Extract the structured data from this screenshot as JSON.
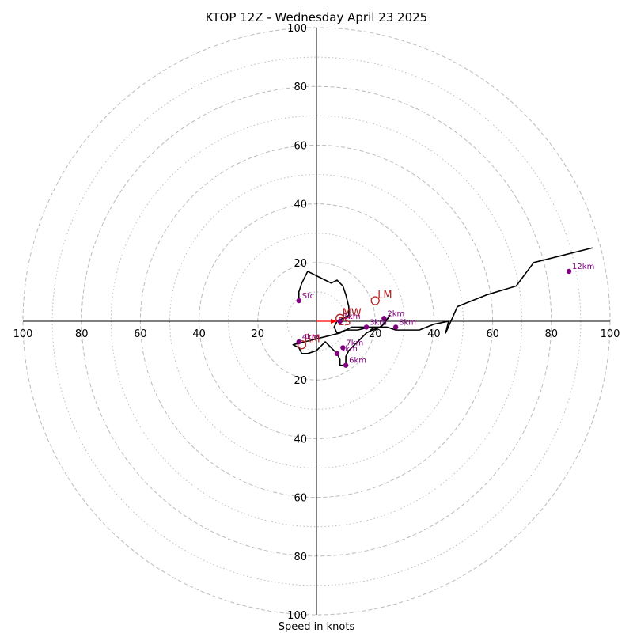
{
  "chart_data": {
    "type": "hodograph",
    "title": "KTOP 12Z - Wednesday April 23 2025",
    "xlabel": "Speed in knots",
    "range": 100,
    "ring_major": [
      20,
      40,
      60,
      80,
      100
    ],
    "ring_minor": [
      10,
      30,
      50,
      70,
      90
    ],
    "x_tick_labels": [
      "100",
      "80",
      "60",
      "40",
      "20",
      "20",
      "40",
      "60",
      "80",
      "100"
    ],
    "y_tick_labels": [
      "100",
      "80",
      "60",
      "40",
      "20",
      "20",
      "40",
      "60",
      "80",
      "100"
    ],
    "colors": {
      "trace": "#000000",
      "height_points": "#800080",
      "motion": "#b22222",
      "shear_vector": "#ff0000",
      "grid": "#bbbbbb"
    },
    "hodograph_trace": [
      [
        -6,
        7
      ],
      [
        -6,
        10
      ],
      [
        -5,
        13
      ],
      [
        -3,
        17
      ],
      [
        1,
        15
      ],
      [
        5,
        13
      ],
      [
        7,
        14
      ],
      [
        9,
        12
      ],
      [
        10,
        9
      ],
      [
        11,
        5
      ],
      [
        11,
        2
      ],
      [
        7,
        0
      ],
      [
        6,
        -2
      ],
      [
        7,
        -4
      ],
      [
        10,
        -3
      ],
      [
        14,
        -3
      ],
      [
        18,
        -2
      ],
      [
        20,
        -3
      ],
      [
        23,
        -1
      ],
      [
        25,
        2
      ],
      [
        22,
        -2
      ],
      [
        19,
        -3
      ],
      [
        17,
        -4
      ],
      [
        15,
        -6
      ],
      [
        13,
        -8
      ],
      [
        11,
        -10
      ],
      [
        10,
        -12
      ],
      [
        10,
        -15
      ],
      [
        9,
        -15
      ],
      [
        8,
        -15
      ],
      [
        8,
        -13
      ],
      [
        7,
        -11
      ],
      [
        5,
        -9
      ],
      [
        3,
        -7
      ],
      [
        0,
        -10
      ],
      [
        -3,
        -11
      ],
      [
        -5,
        -11
      ],
      [
        -6,
        -9
      ],
      [
        -8,
        -8
      ],
      [
        -4,
        -7
      ],
      [
        0,
        -6
      ],
      [
        4,
        -5
      ],
      [
        8,
        -4
      ],
      [
        12,
        -2
      ],
      [
        16,
        -2
      ],
      [
        20,
        -2
      ],
      [
        24,
        -2
      ],
      [
        27,
        -3
      ],
      [
        30,
        -3
      ],
      [
        35,
        -3
      ],
      [
        40,
        -1
      ],
      [
        45,
        0
      ],
      [
        44,
        -4
      ],
      [
        48,
        5
      ],
      [
        58,
        9
      ],
      [
        68,
        12
      ],
      [
        74,
        20
      ],
      [
        94,
        25
      ]
    ],
    "height_points": [
      {
        "label": "Sfc",
        "u": -6,
        "v": 7
      },
      {
        "label": "1km",
        "u": 8,
        "v": 0
      },
      {
        "label": "2km",
        "u": 23,
        "v": 1
      },
      {
        "label": "3km",
        "u": 17,
        "v": -2
      },
      {
        "label": "4km",
        "u": -6,
        "v": -7
      },
      {
        "label": "5km",
        "u": 7,
        "v": -11
      },
      {
        "label": "6km",
        "u": 10,
        "v": -15
      },
      {
        "label": "7km",
        "u": 9,
        "v": -9
      },
      {
        "label": "8km",
        "u": 27,
        "v": -2
      },
      {
        "label": "12km",
        "u": 86,
        "v": 17
      }
    ],
    "storm_motion": [
      {
        "label": "LM",
        "u": 20,
        "v": 7
      },
      {
        "label": "RM",
        "u": -5,
        "v": -8
      },
      {
        "label": "MW",
        "u": 8,
        "v": 1
      }
    ],
    "shear_vector": {
      "label": "ES",
      "from": [
        0,
        0
      ],
      "to": [
        7,
        0
      ]
    }
  }
}
